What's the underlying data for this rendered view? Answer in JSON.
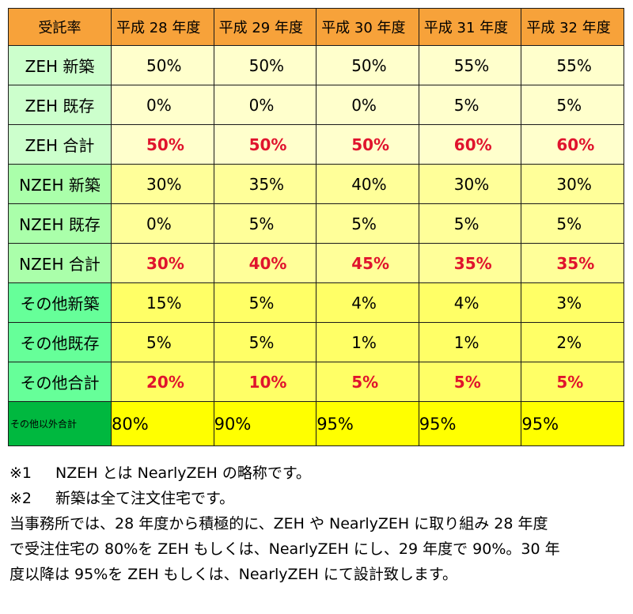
{
  "table": {
    "corner_label": "受託率",
    "years": [
      "平成 28 年度",
      "平成 29 年度",
      "平成 30 年度",
      "平成 31 年度",
      "平成 32 年度"
    ],
    "rows": [
      {
        "label": "ZEH 新築",
        "values": [
          "50%",
          "50%",
          "50%",
          "55%",
          "55%"
        ],
        "emphasis": false,
        "label_color": "#ccffcc",
        "cell_color": "#ffffcc"
      },
      {
        "label": "ZEH 既存",
        "values": [
          "0%",
          "0%",
          "0%",
          "5%",
          "5%"
        ],
        "emphasis": false,
        "label_color": "#ccffcc",
        "cell_color": "#ffffcc"
      },
      {
        "label": "ZEH 合計",
        "values": [
          "50%",
          "50%",
          "50%",
          "60%",
          "60%"
        ],
        "emphasis": true,
        "label_color": "#ccffcc",
        "cell_color": "#ffffcc"
      },
      {
        "label": "NZEH 新築",
        "values": [
          "30%",
          "35%",
          "40%",
          "30%",
          "30%"
        ],
        "emphasis": false,
        "label_color": "#aaffaa",
        "cell_color": "#ffff99"
      },
      {
        "label": "NZEH 既存",
        "values": [
          "0%",
          "5%",
          "5%",
          "5%",
          "5%"
        ],
        "emphasis": false,
        "label_color": "#aaffaa",
        "cell_color": "#ffff99"
      },
      {
        "label": "NZEH 合計",
        "values": [
          "30%",
          "40%",
          "45%",
          "35%",
          "35%"
        ],
        "emphasis": true,
        "label_color": "#aaffaa",
        "cell_color": "#ffff99"
      },
      {
        "label": "その他新築",
        "values": [
          "15%",
          "5%",
          "4%",
          "4%",
          "3%"
        ],
        "emphasis": false,
        "label_color": "#66ff99",
        "cell_color": "#ffff66"
      },
      {
        "label": "その他既存",
        "values": [
          "5%",
          "5%",
          "1%",
          "1%",
          "2%"
        ],
        "emphasis": false,
        "label_color": "#66ff99",
        "cell_color": "#ffff66"
      },
      {
        "label": "その他合計",
        "values": [
          "20%",
          "10%",
          "5%",
          "5%",
          "5%"
        ],
        "emphasis": true,
        "label_color": "#66ff99",
        "cell_color": "#ffff66"
      }
    ],
    "grand_total": {
      "label": "その他以外合計",
      "values": [
        "80%",
        "90%",
        "95%",
        "95%",
        "95%"
      ]
    }
  },
  "notes": {
    "note1_mark": "※1",
    "note1_text": "NZEH とは NearlyZEH の略称です。",
    "note2_mark": "※2",
    "note2_text": "新築は全て注文住宅です。",
    "paragraph": [
      "当事務所では、28 年度から積極的に、ZEH や NearlyZEH に取り組み 28 年度",
      "で受注住宅の 80%を ZEH もしくは、NearlyZEH にし、29 年度で 90%。30 年",
      "度以降は 95%を ZEH もしくは、NearlyZEH にて設計致します。"
    ]
  }
}
